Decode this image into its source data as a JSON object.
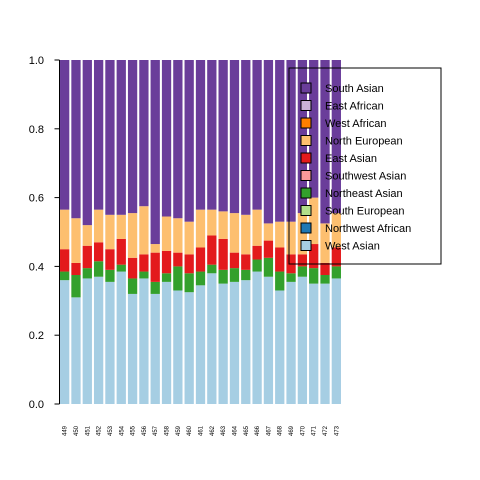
{
  "chart_data": {
    "type": "bar",
    "stacked": true,
    "title": "",
    "xlabel": "",
    "ylabel": "",
    "ylim": [
      0,
      1
    ],
    "y_ticks": [
      "0.0",
      "0.2",
      "0.4",
      "0.6",
      "0.8",
      "1.0"
    ],
    "legend_position": "top-right",
    "categories": [
      "449",
      "450",
      "451",
      "452",
      "453",
      "454",
      "455",
      "456",
      "457",
      "458",
      "459",
      "460",
      "461",
      "462",
      "463",
      "464",
      "465",
      "466",
      "467",
      "468",
      "469",
      "470",
      "471",
      "472",
      "473"
    ],
    "series": [
      {
        "name": "West Asian",
        "color": "#a6cee3",
        "values": [
          0.36,
          0.31,
          0.365,
          0.37,
          0.355,
          0.385,
          0.32,
          0.365,
          0.32,
          0.355,
          0.33,
          0.325,
          0.345,
          0.38,
          0.35,
          0.355,
          0.36,
          0.385,
          0.37,
          0.33,
          0.355,
          0.37,
          0.35,
          0.35,
          0.365
        ]
      },
      {
        "name": "Northwest African",
        "color": "#1f78b4",
        "values": [
          0,
          0,
          0,
          0,
          0,
          0,
          0,
          0,
          0,
          0,
          0,
          0,
          0,
          0,
          0,
          0,
          0,
          0,
          0,
          0,
          0,
          0,
          0,
          0,
          0
        ]
      },
      {
        "name": "South European",
        "color": "#b2df8a",
        "values": [
          0,
          0,
          0,
          0,
          0,
          0,
          0,
          0,
          0,
          0,
          0,
          0,
          0,
          0,
          0,
          0,
          0,
          0,
          0,
          0,
          0,
          0,
          0,
          0,
          0
        ]
      },
      {
        "name": "Northeast Asian",
        "color": "#33a02c",
        "values": [
          0.025,
          0.065,
          0.03,
          0.045,
          0.035,
          0.02,
          0.045,
          0.02,
          0.035,
          0.025,
          0.07,
          0.055,
          0.04,
          0.025,
          0.04,
          0.04,
          0.03,
          0.035,
          0.055,
          0.055,
          0.025,
          0.03,
          0.045,
          0.025,
          0.035
        ]
      },
      {
        "name": "Southwest Asian",
        "color": "#fb9a99",
        "values": [
          0,
          0,
          0,
          0,
          0,
          0,
          0,
          0,
          0,
          0,
          0,
          0,
          0,
          0,
          0,
          0,
          0,
          0,
          0,
          0,
          0,
          0,
          0,
          0,
          0
        ]
      },
      {
        "name": "East Asian",
        "color": "#e31a1c",
        "values": [
          0.065,
          0.035,
          0.065,
          0.055,
          0.06,
          0.075,
          0.06,
          0.05,
          0.085,
          0.065,
          0.04,
          0.055,
          0.07,
          0.085,
          0.09,
          0.045,
          0.045,
          0.04,
          0.05,
          0.07,
          0.055,
          0.035,
          0.07,
          0.035,
          0.055
        ]
      },
      {
        "name": "North European",
        "color": "#fdbf6f",
        "values": [
          0.115,
          0.13,
          0.06,
          0.095,
          0.1,
          0.07,
          0.13,
          0.14,
          0.025,
          0.1,
          0.1,
          0.095,
          0.11,
          0.075,
          0.08,
          0.115,
          0.115,
          0.105,
          0.05,
          0.075,
          0.095,
          0.12,
          0.135,
          0.115,
          0.1
        ]
      },
      {
        "name": "West African",
        "color": "#ff7f00",
        "values": [
          0,
          0,
          0,
          0,
          0,
          0,
          0,
          0,
          0,
          0,
          0,
          0,
          0,
          0,
          0,
          0,
          0,
          0,
          0,
          0,
          0,
          0,
          0,
          0,
          0
        ]
      },
      {
        "name": "East African",
        "color": "#cab2d6",
        "values": [
          0,
          0,
          0,
          0,
          0,
          0,
          0,
          0,
          0,
          0,
          0,
          0,
          0,
          0,
          0,
          0,
          0,
          0,
          0,
          0,
          0,
          0,
          0,
          0,
          0
        ]
      },
      {
        "name": "South Asian",
        "color": "#6a3d9a",
        "values": [
          0.435,
          0.46,
          0.48,
          0.435,
          0.45,
          0.45,
          0.445,
          0.425,
          0.535,
          0.455,
          0.46,
          0.47,
          0.435,
          0.435,
          0.44,
          0.445,
          0.45,
          0.435,
          0.475,
          0.47,
          0.47,
          0.445,
          0.4,
          0.475,
          0.445
        ]
      }
    ],
    "legend_order": [
      "South Asian",
      "East African",
      "West African",
      "North European",
      "East Asian",
      "Southwest Asian",
      "Northeast Asian",
      "South European",
      "Northwest African",
      "West Asian"
    ]
  }
}
